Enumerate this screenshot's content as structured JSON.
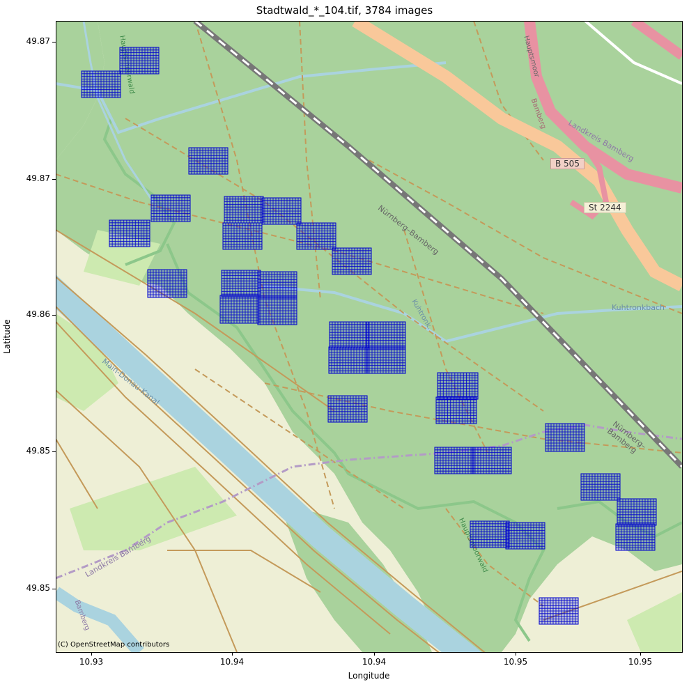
{
  "title": "Stadtwald_*_104.tif, 3784 images",
  "x_axis": {
    "label": "Longitude",
    "ticks": [
      "10.93",
      "10.94",
      "10.94",
      "10.95",
      "10.95"
    ]
  },
  "y_axis": {
    "label": "Latitude",
    "ticks": [
      "49.87",
      "49.87",
      "49.86",
      "49.85",
      "49.85"
    ]
  },
  "attribution": "(C) OpenStreetMap contributors",
  "map_labels": {
    "main_donau_kanal": "Main-Donau-Kanal",
    "nurnberg_bamberg_1": "Nürnberg–Bamberg",
    "nurnberg_bamberg_2": "Nürnberg–Bamberg",
    "kuhtronkbach": "Kuhtronkbach",
    "kuhtronk": "Kuhtronk.",
    "landkreis_bamberg_1": "Landkreis Bamberg",
    "landkreis_bamberg_2": "Landkreis Bamberg",
    "bamberg_road": "Bamberg",
    "bamberg_town": "Bamberg",
    "hauptsmoor": "Hauptsmoor",
    "b505": "B 505",
    "st2244": "St 2244",
    "hauptsmoorwald": "Hauptsmoorwald",
    "hauptsmoorwald_top": "Hauptsmoorwald"
  },
  "colors": {
    "forest": "#a9d29c",
    "farmland": "#eeefd6",
    "meadow": "#cdeab0",
    "water": "#aad3df",
    "highway": "#e892a2",
    "trunk": "#f9c89a",
    "path": "#c49a5a",
    "grid": "#0000cc",
    "railway": "#888888"
  }
}
